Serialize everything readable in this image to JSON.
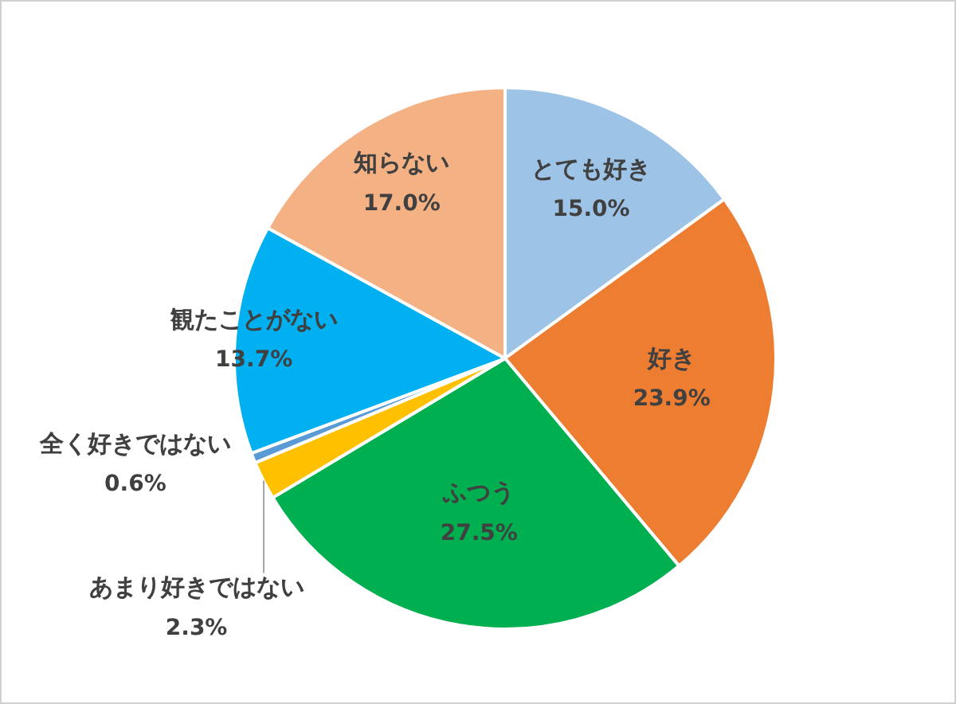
{
  "chart_data": {
    "type": "pie",
    "categories": [
      "とても好き",
      "好き",
      "ふつう",
      "あまり好きではない",
      "全く好きではない",
      "観たことがない",
      "知らない"
    ],
    "values": [
      15.0,
      23.9,
      27.5,
      2.3,
      0.6,
      13.7,
      17.0
    ],
    "colors": [
      "#9dc3e6",
      "#ed7d31",
      "#00b050",
      "#ffc000",
      "#5b9bd5",
      "#00b0f0",
      "#f4b183"
    ],
    "value_labels": [
      "15.0%",
      "23.9%",
      "27.5%",
      "2.3%",
      "0.6%",
      "13.7%",
      "17.0%"
    ],
    "legend": false
  }
}
